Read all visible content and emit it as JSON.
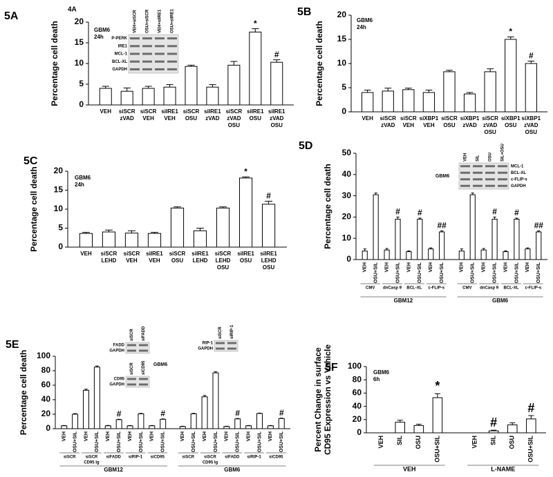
{
  "chart_data": [
    {
      "type": "bar",
      "panel": "5A",
      "note": "4A",
      "title": [
        "GBM6",
        "24h"
      ],
      "ylabel": [
        "Percentage cell death"
      ],
      "categories": [
        [
          "VEH"
        ],
        [
          "siSCR",
          "zVAD"
        ],
        [
          "siSCR",
          "VEH"
        ],
        [
          "siIRE1",
          "VEH"
        ],
        [
          "siSCR",
          "OSU"
        ],
        [
          "siIRE1",
          "zVAD"
        ],
        [
          "siSCR",
          "zVAD",
          "OSU"
        ],
        [
          "siIRE1",
          "OSU"
        ],
        [
          "siIRE1",
          "zVAD",
          "OSU"
        ]
      ],
      "values": [
        4,
        3.3,
        4,
        4.3,
        9.3,
        4.3,
        9.6,
        17.6,
        10.3
      ],
      "errors": [
        0.5,
        0.8,
        0.5,
        0.6,
        0.3,
        0.6,
        0.9,
        0.8,
        0.6
      ],
      "annotations": [
        null,
        null,
        null,
        null,
        null,
        null,
        null,
        "*",
        "#"
      ],
      "ylim": [
        0,
        20
      ],
      "yticks": [
        0,
        5,
        10,
        15,
        20
      ],
      "color": "#ffffff",
      "insets": [
        {
          "lanes": [
            "VEH+siSCR",
            "OSU+siSCR",
            "VEH+siIRE1",
            "OSU+siIRE1"
          ],
          "rows": [
            "P-PERK",
            "IRE1",
            "MCL-1",
            "BCL-XL",
            "GAPDH"
          ]
        }
      ]
    },
    {
      "type": "bar",
      "panel": "5B",
      "title": [
        "GBM6",
        "24h"
      ],
      "ylabel": [
        "Percentage cell death"
      ],
      "categories": [
        [
          "VEH"
        ],
        [
          "siSCR",
          "zVAD"
        ],
        [
          "siSCR",
          "VEH"
        ],
        [
          "siXBP1",
          "VEH"
        ],
        [
          "siSCR",
          "OSU"
        ],
        [
          "siXBP1",
          "zVAD"
        ],
        [
          "siSCR",
          "zVAD",
          "OSU"
        ],
        [
          "siXBP1",
          "OSU"
        ],
        [
          "siXBP1",
          "zVAD",
          "OSU"
        ]
      ],
      "values": [
        4,
        4.3,
        4.6,
        4,
        8.3,
        3.7,
        8.3,
        15,
        10
      ],
      "errors": [
        0.5,
        0.6,
        0.3,
        0.5,
        0.3,
        0.3,
        0.6,
        0.5,
        0.5
      ],
      "annotations": [
        null,
        null,
        null,
        null,
        null,
        null,
        null,
        "*",
        "#"
      ],
      "ylim": [
        0,
        20
      ],
      "yticks": [
        0,
        5,
        10,
        15,
        20
      ],
      "color": "#ffffff"
    },
    {
      "type": "bar",
      "panel": "5C",
      "title": [
        "GBM6",
        "24h"
      ],
      "ylabel": [
        "Percentage cell death"
      ],
      "categories": [
        [
          "VEH"
        ],
        [
          "siSCR",
          "LEHD"
        ],
        [
          "siSCR",
          "VEH"
        ],
        [
          "siIRE1",
          "VEH"
        ],
        [
          "siSCR",
          "OSU"
        ],
        [
          "siIRE1",
          "LEHD"
        ],
        [
          "siSCR",
          "LEHD",
          "OSU"
        ],
        [
          "siIRE1",
          "OSU"
        ],
        [
          "siIRE1",
          "LEHD",
          "OSU"
        ]
      ],
      "values": [
        3.6,
        4,
        3.7,
        3.6,
        10.3,
        4.3,
        10.3,
        18.2,
        11.3
      ],
      "errors": [
        0.3,
        0.5,
        0.6,
        0.3,
        0.3,
        0.7,
        0.3,
        0.3,
        0.8
      ],
      "annotations": [
        null,
        null,
        null,
        null,
        null,
        null,
        null,
        "*",
        "#"
      ],
      "ylim": [
        0,
        20
      ],
      "yticks": [
        0,
        5,
        10,
        15,
        20
      ],
      "color": "#ffffff"
    },
    {
      "type": "bar",
      "panel": "5D",
      "ylabel": [
        "Percentage cell death"
      ],
      "rotate_labels": true,
      "categories": [
        [
          "VEH"
        ],
        [
          "OSU+SIL"
        ],
        [
          "VEH"
        ],
        [
          "OSU+SIL"
        ],
        [
          "VEH"
        ],
        [
          "OSU+SIL"
        ],
        [
          "VEH"
        ],
        [
          "OSU+SIL"
        ],
        [
          "VEH"
        ],
        [
          "OSU+SIL"
        ],
        [
          "VEH"
        ],
        [
          "OSU+SIL"
        ],
        [
          "VEH"
        ],
        [
          "OSU+SIL"
        ],
        [
          "VEH"
        ],
        [
          "OSU+SIL"
        ]
      ],
      "values": [
        4,
        30.5,
        4.5,
        19,
        3.7,
        19,
        5,
        13,
        4,
        30.5,
        4.5,
        19,
        3.7,
        19,
        5,
        13
      ],
      "errors": [
        1,
        0.8,
        0.7,
        1,
        0.4,
        0.5,
        0.5,
        0.5,
        1,
        0.8,
        0.7,
        1,
        0.4,
        0.5,
        0.5,
        0.5
      ],
      "annotations": [
        null,
        null,
        null,
        "#",
        null,
        "#",
        null,
        "##",
        null,
        null,
        null,
        "#",
        null,
        "#",
        null,
        "##"
      ],
      "groups": [
        {
          "label": [
            "CMV"
          ],
          "from": 0,
          "to": 1
        },
        {
          "label": [
            "dnCasp 9"
          ],
          "from": 2,
          "to": 3
        },
        {
          "label": [
            "BCL-XL"
          ],
          "from": 4,
          "to": 5
        },
        {
          "label": [
            "c-FLIP-s"
          ],
          "from": 6,
          "to": 7
        },
        {
          "label": [
            "CMV"
          ],
          "from": 8,
          "to": 9
        },
        {
          "label": [
            "dnCasp 9"
          ],
          "from": 10,
          "to": 11
        },
        {
          "label": [
            "BCL-XL"
          ],
          "from": 12,
          "to": 13
        },
        {
          "label": [
            "c-FLIP-s"
          ],
          "from": 14,
          "to": 15
        }
      ],
      "supergroups": [
        {
          "label": [
            "GBM12"
          ],
          "from": 0,
          "to": 7
        },
        {
          "label": [
            "GBM6"
          ],
          "from": 8,
          "to": 15
        }
      ],
      "ylim": [
        0,
        50
      ],
      "yticks": [
        0,
        10,
        20,
        30,
        40,
        50
      ],
      "color": "#ffffff",
      "insets": [
        {
          "label": "GBM6",
          "lanes": [
            "VEH",
            "SIL",
            "OSU",
            "SIL+OSU"
          ],
          "rows": [
            "MCL-1",
            "BCL-XL",
            "c-FLIP-s",
            "GAPDH"
          ]
        }
      ]
    },
    {
      "type": "bar",
      "panel": "5E",
      "ylabel": [
        "Percentage cell death"
      ],
      "rotate_labels": true,
      "categories": [
        [
          "VEH"
        ],
        [
          "OSU+SIL"
        ],
        [
          "VEH"
        ],
        [
          "OSU+SIL"
        ],
        [
          "VEH"
        ],
        [
          "OSU+SIL"
        ],
        [
          "VEH"
        ],
        [
          "OSU+SIL"
        ],
        [
          "VEH"
        ],
        [
          "OSU+SIL"
        ],
        [
          "VEH"
        ],
        [
          "OSU+SIL"
        ],
        [
          "VEH"
        ],
        [
          "OSU+SIL"
        ],
        [
          "VEH"
        ],
        [
          "OSU+SIL"
        ],
        [
          "VEH"
        ],
        [
          "OSU+SIL"
        ],
        [
          "VEH"
        ],
        [
          "OSU+SIL"
        ]
      ],
      "values": [
        4,
        20,
        53,
        85,
        4,
        12.5,
        4,
        20.5,
        4,
        13,
        3,
        20.5,
        44,
        77,
        3,
        13.5,
        4,
        21,
        4,
        14
      ],
      "errors": [
        0.4,
        0.8,
        1.5,
        1.5,
        0.5,
        0.5,
        0.4,
        0.6,
        0.4,
        0.5,
        0.4,
        0.6,
        1.8,
        1.5,
        0.4,
        0.6,
        0.4,
        0.5,
        0.4,
        0.5
      ],
      "annotations": [
        null,
        null,
        null,
        null,
        null,
        "#",
        null,
        null,
        null,
        "#",
        null,
        null,
        null,
        null,
        null,
        "#",
        null,
        null,
        null,
        "#"
      ],
      "groups": [
        {
          "label": [
            "siSCR"
          ],
          "from": 0,
          "to": 1
        },
        {
          "label": [
            "siSCR",
            "CD95 Ig"
          ],
          "from": 2,
          "to": 3
        },
        {
          "label": [
            "siFADD"
          ],
          "from": 4,
          "to": 5
        },
        {
          "label": [
            "siRIP-1"
          ],
          "from": 6,
          "to": 7
        },
        {
          "label": [
            "siCD95"
          ],
          "from": 8,
          "to": 9
        },
        {
          "label": [
            "siSCR"
          ],
          "from": 10,
          "to": 11
        },
        {
          "label": [
            "siSCR",
            "CD95 Ig"
          ],
          "from": 12,
          "to": 13
        },
        {
          "label": [
            "siFADD"
          ],
          "from": 14,
          "to": 15
        },
        {
          "label": [
            "siRIP-1"
          ],
          "from": 16,
          "to": 17
        },
        {
          "label": [
            "siCD95"
          ],
          "from": 18,
          "to": 19
        }
      ],
      "supergroups": [
        {
          "label": [
            "GBM12"
          ],
          "from": 0,
          "to": 9
        },
        {
          "label": [
            "GBM6"
          ],
          "from": 10,
          "to": 19
        }
      ],
      "ylim": [
        0,
        100
      ],
      "yticks": [
        0,
        20,
        40,
        60,
        80,
        100
      ],
      "color": "#ffffff",
      "insets": [
        {
          "lanes": [
            "siSCR",
            "siFADD"
          ],
          "rows": [
            "FADD",
            "GAPDH"
          ]
        },
        {
          "label": "GBM6",
          "lanes": [
            "siSCR",
            "siCD95"
          ],
          "rows": [
            "CD95",
            "GAPDH"
          ]
        },
        {
          "lanes": [
            "siSCR",
            "siRIP-1"
          ],
          "rows": [
            "RIP-1",
            "GAPDH"
          ]
        }
      ]
    },
    {
      "type": "bar",
      "panel": "5F",
      "title": [
        "GBM6",
        "6h"
      ],
      "ylabel": [
        "Percent  Change in surface",
        "CD95 Expression vs Vehicle"
      ],
      "rotate_labels": true,
      "categories": [
        [
          "VEH"
        ],
        [
          "SIL"
        ],
        [
          "OSU"
        ],
        [
          "OSU+SIL"
        ],
        [
          "VEH"
        ],
        [
          "SIL"
        ],
        [
          "OSU"
        ],
        [
          "OSU+SIL"
        ]
      ],
      "values": [
        0,
        16,
        11,
        53,
        0,
        3,
        12,
        21
      ],
      "errors": [
        0,
        3,
        2,
        6,
        0,
        1,
        3,
        5
      ],
      "annotations": [
        null,
        null,
        null,
        "*",
        null,
        "#",
        null,
        "#"
      ],
      "groups": [
        {
          "label": [
            "VEH"
          ],
          "from": 0,
          "to": 3
        },
        {
          "label": [
            "L-NAME"
          ],
          "from": 4,
          "to": 7
        }
      ],
      "ylim": [
        0,
        100
      ],
      "yticks": [
        0,
        20,
        40,
        60,
        80,
        100
      ],
      "color": "#ffffff"
    }
  ]
}
